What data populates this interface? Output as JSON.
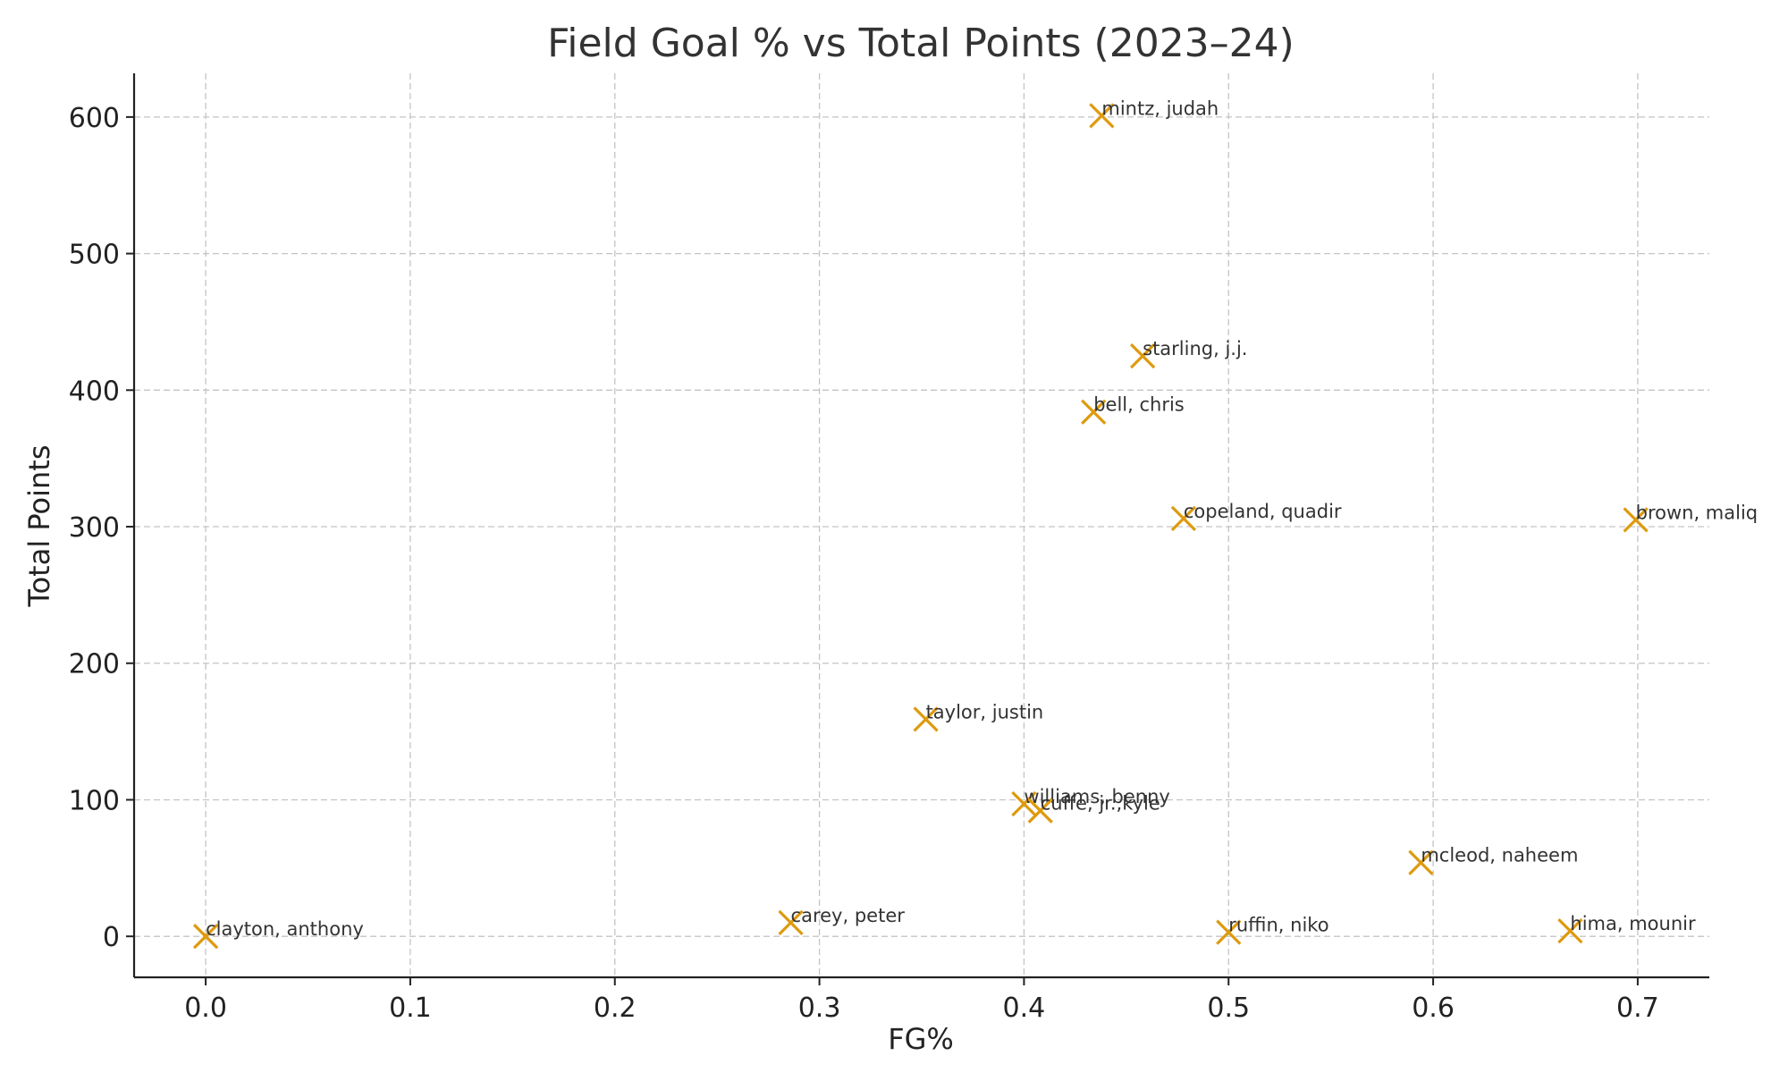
{
  "chart_data": {
    "type": "scatter",
    "title": "Field Goal % vs Total Points (2023–24)",
    "xlabel": "FG%",
    "ylabel": "Total Points",
    "xlim": [
      -0.035,
      0.735
    ],
    "ylim": [
      -30,
      632
    ],
    "xticks": [
      "0.0",
      "0.1",
      "0.2",
      "0.3",
      "0.4",
      "0.5",
      "0.6",
      "0.7"
    ],
    "yticks": [
      "0",
      "100",
      "200",
      "300",
      "400",
      "500",
      "600"
    ],
    "grid": true,
    "marker": "x",
    "marker_color": "#DE9A0E",
    "points": [
      {
        "label": "mintz, judah",
        "x": 0.438,
        "y": 601
      },
      {
        "label": "starling, j.j.",
        "x": 0.458,
        "y": 425
      },
      {
        "label": "bell, chris",
        "x": 0.434,
        "y": 384
      },
      {
        "label": "copeland, quadir",
        "x": 0.478,
        "y": 306
      },
      {
        "label": "brown, maliq",
        "x": 0.699,
        "y": 305
      },
      {
        "label": "taylor, justin",
        "x": 0.352,
        "y": 159
      },
      {
        "label": "williams, benny",
        "x": 0.4,
        "y": 97
      },
      {
        "label": "cuffe, jr.,kyle",
        "x": 0.408,
        "y": 92
      },
      {
        "label": "mcleod, naheem",
        "x": 0.594,
        "y": 54
      },
      {
        "label": "carey, peter",
        "x": 0.286,
        "y": 10
      },
      {
        "label": "clayton, anthony",
        "x": 0.0,
        "y": 0
      },
      {
        "label": "ruffin, niko",
        "x": 0.5,
        "y": 3
      },
      {
        "label": "hima, mounir",
        "x": 0.667,
        "y": 4
      }
    ]
  }
}
